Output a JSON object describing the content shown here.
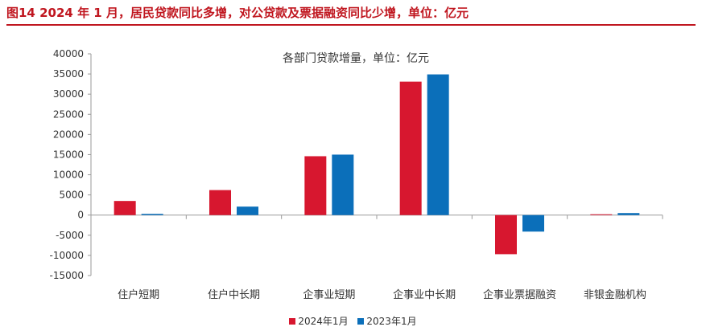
{
  "figure_title": "图14  2024 年 1 月，居民贷款同比多增，对公贷款及票据融资同比少增，单位：亿元",
  "chart_data": {
    "type": "bar",
    "title": "各部门贷款增量，单位：亿元",
    "categories": [
      "住户短期",
      "住户中长期",
      "企事业短期",
      "企事业中长期",
      "企事业票据融资",
      "非银金融机构"
    ],
    "series": [
      {
        "name": "2024年1月",
        "color": "#d7172f",
        "values": [
          3500,
          6200,
          14600,
          33100,
          -9700,
          200
        ]
      },
      {
        "name": "2023年1月",
        "color": "#0b6fba",
        "values": [
          300,
          2100,
          15000,
          34900,
          -4100,
          500
        ]
      }
    ],
    "yticks": [
      "40000",
      "35000",
      "30000",
      "25000",
      "20000",
      "15000",
      "10000",
      "5000",
      "0",
      "-5000",
      "-10000",
      "-15000"
    ],
    "ylim": [
      -15000,
      40000
    ],
    "grid": false,
    "legend": "bottom"
  }
}
